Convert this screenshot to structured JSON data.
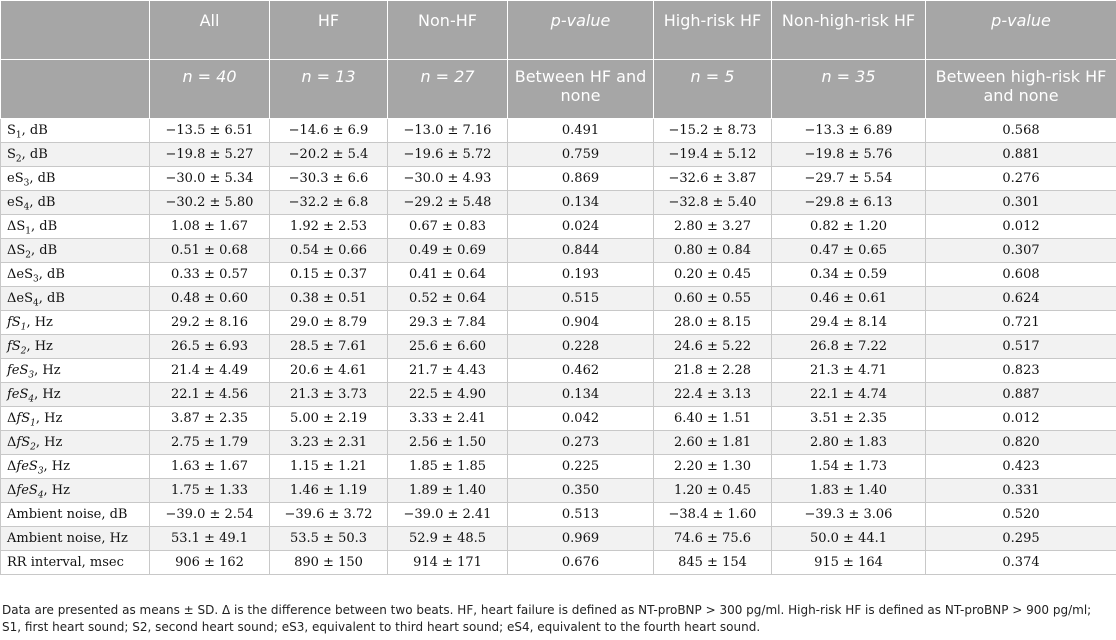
{
  "header": {
    "row1": [
      "",
      "All",
      "HF",
      "Non-HF",
      "p-value",
      "High-risk HF",
      "Non-high-risk HF",
      "p-value"
    ],
    "row2": [
      "",
      "n = 40",
      "n = 13",
      "n = 27",
      "Between HF and none",
      "n = 5",
      "n = 35",
      "Between high-risk HF and none"
    ]
  },
  "rows": [
    [
      "S1, dB",
      "−13.5 ± 6.51",
      "−14.6 ± 6.9",
      "−13.0 ± 7.16",
      "0.491",
      "−15.2 ± 8.73",
      "−13.3 ± 6.89",
      "0.568"
    ],
    [
      "S2, dB",
      "−19.8 ± 5.27",
      "−20.2 ± 5.4",
      "−19.6 ± 5.72",
      "0.759",
      "−19.4 ± 5.12",
      "−19.8 ± 5.76",
      "0.881"
    ],
    [
      "eS3, dB",
      "−30.0 ± 5.34",
      "−30.3 ± 6.6",
      "−30.0 ± 4.93",
      "0.869",
      "−32.6 ± 3.87",
      "−29.7 ± 5.54",
      "0.276"
    ],
    [
      "eS4, dB",
      "−30.2 ± 5.80",
      "−32.2 ± 6.8",
      "−29.2 ± 5.48",
      "0.134",
      "−32.8 ± 5.40",
      "−29.8 ± 6.13",
      "0.301"
    ],
    [
      "ΔS1, dB",
      "1.08 ± 1.67",
      "1.92 ± 2.53",
      "0.67 ± 0.83",
      "0.024",
      "2.80 ± 3.27",
      "0.82 ± 1.20",
      "0.012"
    ],
    [
      "ΔS2, dB",
      "0.51 ± 0.68",
      "0.54 ± 0.66",
      "0.49 ± 0.69",
      "0.844",
      "0.80 ± 0.84",
      "0.47 ± 0.65",
      "0.307"
    ],
    [
      "ΔeS3, dB",
      "0.33 ± 0.57",
      "0.15 ± 0.37",
      "0.41 ± 0.64",
      "0.193",
      "0.20 ± 0.45",
      "0.34 ± 0.59",
      "0.608"
    ],
    [
      "ΔeS4, dB",
      "0.48 ± 0.60",
      "0.38 ± 0.51",
      "0.52 ± 0.64",
      "0.515",
      "0.60 ± 0.55",
      "0.46 ± 0.61",
      "0.624"
    ],
    [
      "fS1, Hz",
      "29.2 ± 8.16",
      "29.0 ± 8.79",
      "29.3 ± 7.84",
      "0.904",
      "28.0 ± 8.15",
      "29.4 ± 8.14",
      "0.721"
    ],
    [
      "fS2, Hz",
      "26.5 ± 6.93",
      "28.5 ± 7.61",
      "25.6 ± 6.60",
      "0.228",
      "24.6 ± 5.22",
      "26.8 ± 7.22",
      "0.517"
    ],
    [
      "feS3, Hz",
      "21.4 ± 4.49",
      "20.6 ± 4.61",
      "21.7 ± 4.43",
      "0.462",
      "21.8 ± 2.28",
      "21.3 ± 4.71",
      "0.823"
    ],
    [
      "feS4, Hz",
      "22.1 ± 4.56",
      "21.3 ± 3.73",
      "22.5 ± 4.90",
      "0.134",
      "22.4 ± 3.13",
      "22.1 ± 4.74",
      "0.887"
    ],
    [
      "ΔfS1, Hz",
      "3.87 ± 2.35",
      "5.00 ± 2.19",
      "3.33 ± 2.41",
      "0.042",
      "6.40 ± 1.51",
      "3.51 ± 2.35",
      "0.012"
    ],
    [
      "ΔfS2, Hz",
      "2.75 ± 1.79",
      "3.23 ± 2.31",
      "2.56 ± 1.50",
      "0.273",
      "2.60 ± 1.81",
      "2.80 ± 1.83",
      "0.820"
    ],
    [
      "ΔfeS3, Hz",
      "1.63 ± 1.67",
      "1.15 ± 1.21",
      "1.85 ± 1.85",
      "0.225",
      "2.20 ± 1.30",
      "1.54 ± 1.73",
      "0.423"
    ],
    [
      "ΔfeS4, Hz",
      "1.75 ± 1.33",
      "1.46 ± 1.19",
      "1.89 ± 1.40",
      "0.350",
      "1.20 ± 0.45",
      "1.83 ± 1.40",
      "0.331"
    ],
    [
      "Ambient noise, dB",
      "−39.0 ± 2.54",
      "−39.6 ± 3.72",
      "−39.0 ± 2.41",
      "0.513",
      "−38.4 ± 1.60",
      "−39.3 ± 3.06",
      "0.520"
    ],
    [
      "Ambient noise, Hz",
      "53.1 ± 49.1",
      "53.5 ± 50.3",
      "52.9 ± 48.5",
      "0.969",
      "74.6 ± 75.6",
      "50.0 ± 44.1",
      "0.295"
    ],
    [
      "RR interval, msec",
      "906 ± 162",
      "890 ± 150",
      "914 ± 171",
      "0.676",
      "845 ± 154",
      "915 ± 164",
      "0.374"
    ]
  ],
  "footnote": "Data are presented as means ± SD. Δ is the difference between two beats. HF, heart failure is defined as NT-proBNP > 300 pg/ml. High-risk HF is defined as NT-proBNP > 900 pg/ml; S1, first heart sound; S2, second heart sound; eS3, equivalent to third heart sound; eS4, equivalent to the fourth heart sound."
}
